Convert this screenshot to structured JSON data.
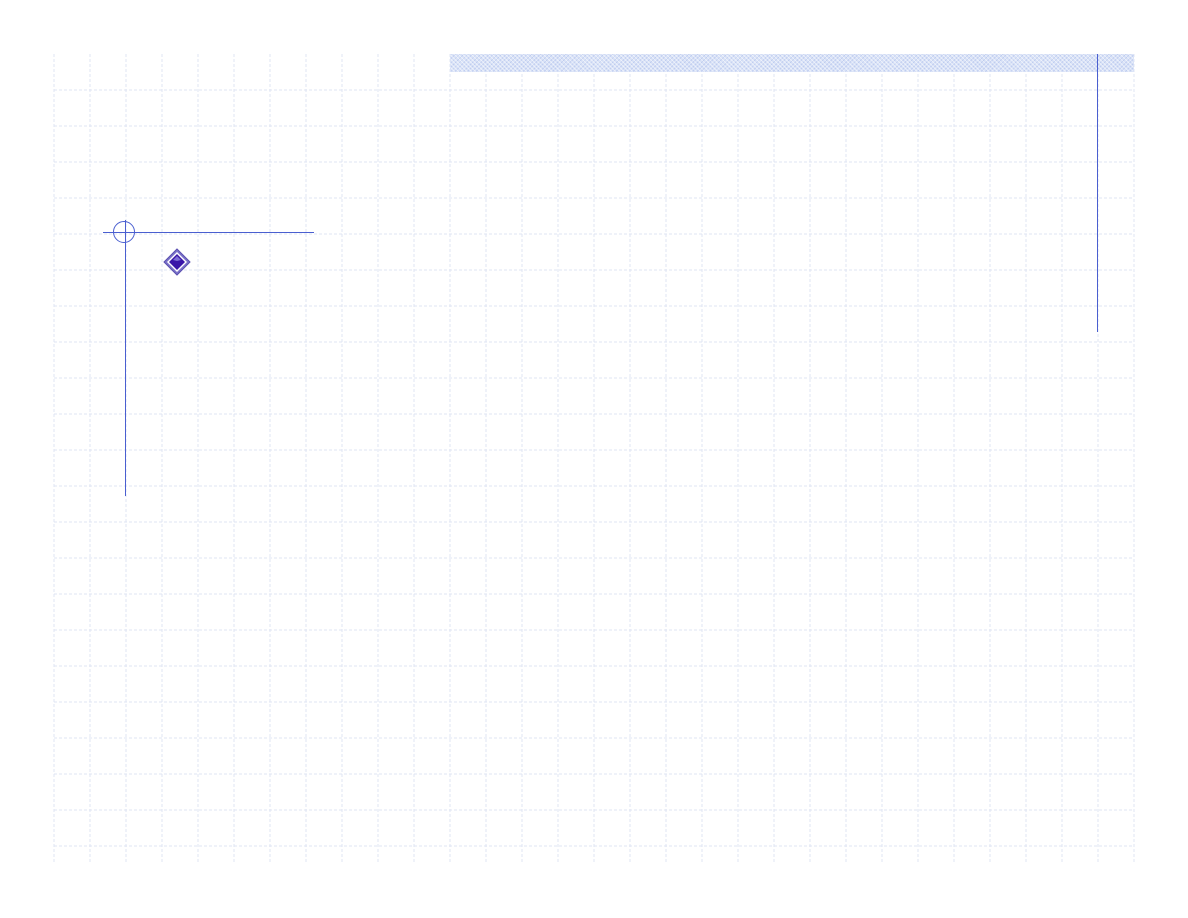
{
  "slide": {
    "background": "#ffffff",
    "grid_color": "#dfe4f3",
    "accent_color": "#4a5fd0",
    "band_color": "#d9e2f7",
    "bullet_icon": "diamond-bullet-icon",
    "bullet_colors": {
      "outer": "#7b73c9",
      "inner": "#3a16a8",
      "highlight": "#ffffff"
    }
  }
}
